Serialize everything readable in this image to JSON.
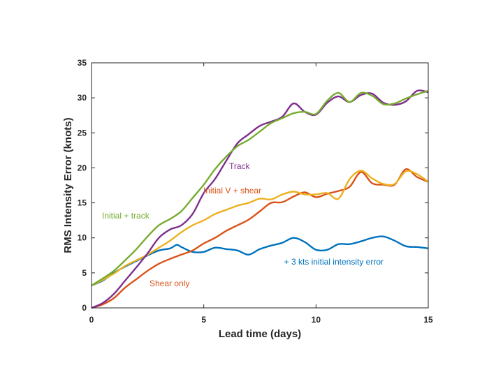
{
  "chart_data": {
    "type": "line",
    "title": "",
    "xlabel": "Lead time (days)",
    "ylabel": "RMS Intensity Error (knots)",
    "xlim": [
      0,
      15
    ],
    "ylim": [
      0,
      35
    ],
    "xticks": [
      0,
      5,
      10,
      15
    ],
    "yticks": [
      0,
      5,
      10,
      15,
      20,
      25,
      30,
      35
    ],
    "grid": false,
    "legend": "none",
    "series": [
      {
        "color": "#0072BD",
        "x": [
          0,
          0.5,
          1,
          1.5,
          2,
          2.5,
          3,
          3.5,
          3.8,
          4,
          4.5,
          5,
          5.5,
          6,
          6.5,
          7,
          7.5,
          8,
          8.5,
          9,
          9.5,
          10,
          10.5,
          11,
          11.5,
          12,
          12.5,
          13,
          13.5,
          14,
          14.5,
          15
        ],
        "y": [
          3.2,
          3.9,
          5.0,
          5.9,
          6.7,
          7.5,
          8.2,
          8.5,
          9.0,
          8.7,
          8.0,
          8.0,
          8.6,
          8.4,
          8.2,
          7.6,
          8.4,
          8.9,
          9.3,
          10.0,
          9.4,
          8.3,
          8.3,
          9.1,
          9.1,
          9.5,
          10.0,
          10.2,
          9.6,
          8.8,
          8.7,
          8.5
        ]
      },
      {
        "color": "#D95319",
        "x": [
          0,
          0.5,
          1,
          1.5,
          2,
          2.5,
          3,
          3.5,
          4,
          4.5,
          5,
          5.5,
          6,
          6.5,
          7,
          7.5,
          8,
          8.5,
          9,
          9.5,
          10,
          10.5,
          11,
          11.5,
          12,
          12.5,
          13,
          13.5,
          14,
          14.5,
          15
        ],
        "y": [
          0,
          0.5,
          1.4,
          2.9,
          4.1,
          5.3,
          6.3,
          7.0,
          7.6,
          8.2,
          9.2,
          10.0,
          11.0,
          11.8,
          12.6,
          13.8,
          15.0,
          15.1,
          15.9,
          16.5,
          15.8,
          16.3,
          16.7,
          17.3,
          19.4,
          17.8,
          17.6,
          17.6,
          19.8,
          18.7,
          18.0
        ]
      },
      {
        "color": "#EDB120",
        "x": [
          0,
          0.5,
          1,
          1.5,
          2,
          2.5,
          3,
          3.5,
          4,
          4.5,
          5,
          5.5,
          6,
          6.5,
          7,
          7.5,
          8,
          8.5,
          9,
          9.5,
          10,
          10.5,
          11,
          11.5,
          12,
          12.5,
          13,
          13.5,
          14,
          14.5,
          15
        ],
        "y": [
          3.2,
          4.0,
          4.9,
          6.0,
          6.8,
          7.6,
          8.6,
          9.6,
          10.8,
          11.8,
          12.5,
          13.4,
          14.0,
          14.6,
          15.0,
          15.6,
          15.5,
          16.2,
          16.6,
          16.2,
          16.2,
          16.4,
          15.6,
          18.4,
          19.6,
          18.5,
          17.7,
          17.7,
          19.5,
          19.1,
          18.0
        ]
      },
      {
        "color": "#7E2F8E",
        "x": [
          0,
          0.5,
          1,
          1.5,
          2,
          2.5,
          3,
          3.5,
          4,
          4.5,
          5,
          5.5,
          6,
          6.5,
          7,
          7.5,
          8,
          8.5,
          9,
          9.5,
          10,
          10.5,
          11,
          11.5,
          12,
          12.5,
          13,
          13.5,
          14,
          14.5,
          15
        ],
        "y": [
          0,
          0.7,
          2.0,
          3.9,
          5.8,
          7.8,
          10.0,
          11.2,
          11.8,
          13.4,
          16.4,
          18.4,
          21.0,
          23.5,
          24.8,
          26.0,
          26.6,
          27.3,
          29.2,
          28.0,
          27.6,
          29.3,
          30.2,
          29.4,
          30.4,
          30.6,
          29.3,
          29.0,
          29.5,
          31.0,
          30.8
        ]
      },
      {
        "color": "#77AC30",
        "x": [
          0,
          0.5,
          1,
          1.5,
          2,
          2.5,
          3,
          3.5,
          4,
          4.5,
          5,
          5.5,
          6,
          6.5,
          7,
          7.5,
          8,
          8.5,
          9,
          9.5,
          10,
          10.5,
          11,
          11.5,
          12,
          12.5,
          13,
          13.5,
          14,
          14.5,
          15
        ],
        "y": [
          3.2,
          4.2,
          5.3,
          6.8,
          8.4,
          10.2,
          11.8,
          12.7,
          13.8,
          15.7,
          17.6,
          19.8,
          21.6,
          23.1,
          24.0,
          25.2,
          26.4,
          27.1,
          27.8,
          28.0,
          27.7,
          29.6,
          30.7,
          29.4,
          30.7,
          30.3,
          29.1,
          29.2,
          29.9,
          30.5,
          31.0
        ]
      }
    ],
    "annotations": [
      {
        "text": "Track",
        "color": "#7E2F8E"
      },
      {
        "text": "Initial V + shear",
        "color": "#D95319"
      },
      {
        "text": "Initial + track",
        "color": "#77AC30"
      },
      {
        "text": "+ 3 kts initial intensity error",
        "color": "#0072BD"
      },
      {
        "text": "Shear only",
        "color": "#D95319"
      }
    ]
  }
}
